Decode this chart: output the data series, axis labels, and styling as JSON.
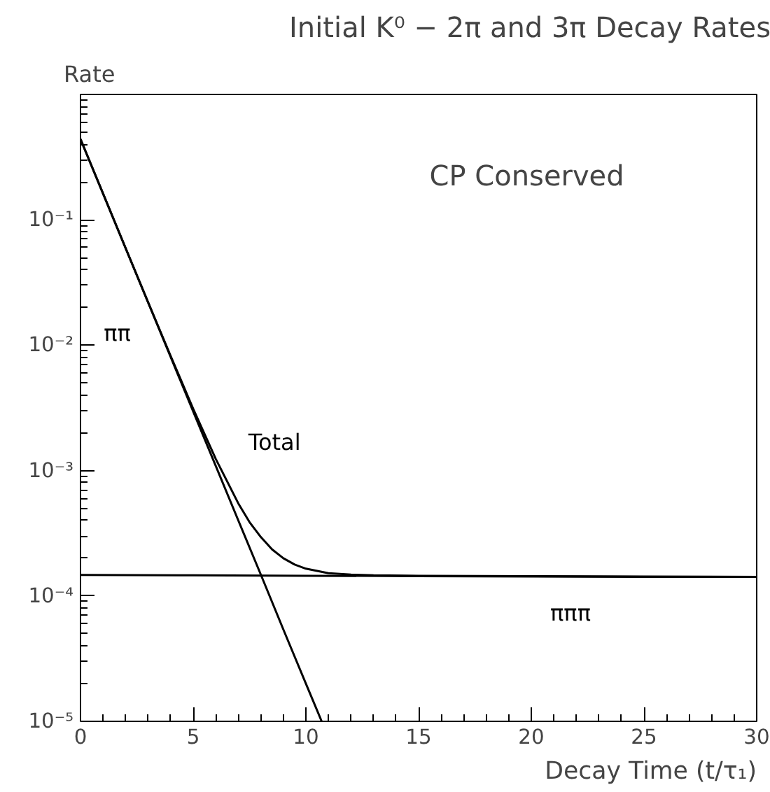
{
  "chart_data": {
    "type": "line",
    "title": "Initial K⁰ − 2π and 3π Decay Rates",
    "xlabel": "Decay Time (t/τ₁)",
    "ylabel": "Rate",
    "log": "y",
    "grid": false,
    "xlim": [
      0,
      30
    ],
    "ylim": [
      1e-05,
      1
    ],
    "xticks": [
      0,
      5,
      10,
      15,
      20,
      25,
      30
    ],
    "yticks": [
      {
        "value": 1e-05,
        "label": "10⁻⁵"
      },
      {
        "value": 0.0001,
        "label": "10⁻⁴"
      },
      {
        "value": 0.001,
        "label": "10⁻³"
      },
      {
        "value": 0.01,
        "label": "10⁻²"
      },
      {
        "value": 0.1,
        "label": "10⁻¹"
      }
    ],
    "series": [
      {
        "name": "ππ",
        "color": "#000000",
        "x": [
          0,
          1,
          2,
          3,
          4,
          5,
          6,
          7,
          8,
          9,
          10,
          10.7
        ],
        "values": [
          0.44,
          0.162,
          0.0595,
          0.0219,
          0.00806,
          0.00296,
          0.00109,
          0.000401,
          0.000148,
          5.4e-05,
          2e-05,
          1e-05
        ]
      },
      {
        "name": "Total",
        "color": "#000000",
        "x": [
          0,
          1,
          2,
          3,
          4,
          5,
          6,
          7,
          7.5,
          8,
          8.5,
          9,
          9.5,
          10,
          11,
          12,
          13,
          15,
          20,
          25,
          30
        ],
        "values": [
          0.44,
          0.162,
          0.0596,
          0.022,
          0.00821,
          0.00311,
          0.00124,
          0.000548,
          0.000388,
          0.000295,
          0.000235,
          0.0002,
          0.000178,
          0.000165,
          0.000152,
          0.000148,
          0.000146,
          0.000145,
          0.000144,
          0.000143,
          0.000142
        ]
      },
      {
        "name": "πππ",
        "color": "#000000",
        "x": [
          0,
          5,
          10,
          15,
          20,
          25,
          30
        ],
        "values": [
          0.000147,
          0.000146,
          0.000145,
          0.000144,
          0.000143,
          0.000142,
          0.000142
        ]
      }
    ],
    "annotations": [
      "CP Conserved"
    ]
  }
}
